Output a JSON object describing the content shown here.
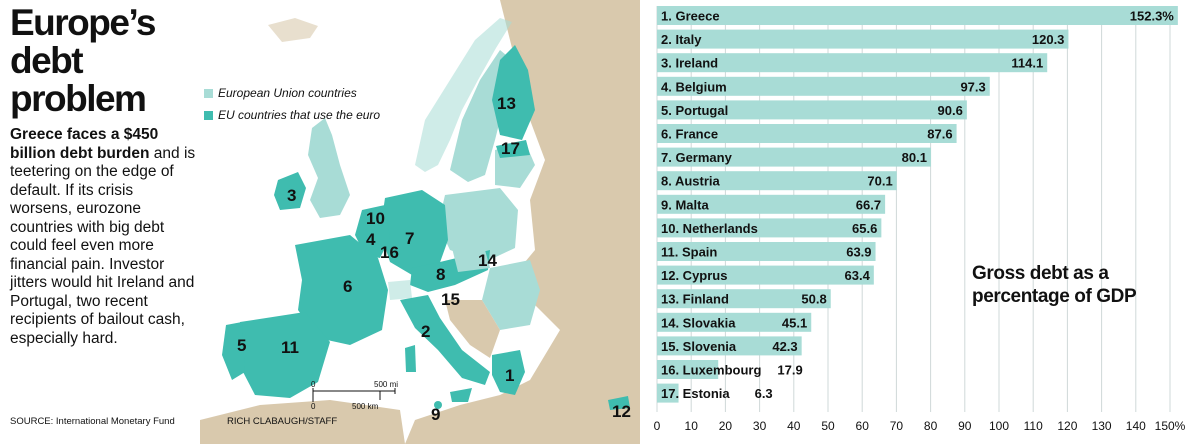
{
  "title": "Europe’s debt problem",
  "blurb": {
    "bold": "Greece faces a $450 billion debt burden",
    "text": " and is teetering on the edge of default. If its crisis worsens, eurozone countries with big debt could feel even more financial pain. Investor jitters would hit Ireland and Portugal, two recent recipients of bailout cash, especially hard."
  },
  "source": "SOURCE: International Monetary Fund",
  "credit": "RICH CLABAUGH/STAFF",
  "map": {
    "legend": [
      {
        "label": "European Union countries",
        "color": "#a8dcd6"
      },
      {
        "label": "EU countries that use the euro",
        "color": "#3fbcaf"
      }
    ],
    "scale": {
      "miles": "500 mi",
      "km": "500 km",
      "zero": "0"
    },
    "numbers": [
      "1",
      "2",
      "3",
      "4",
      "5",
      "6",
      "7",
      "8",
      "9",
      "10",
      "11",
      "12",
      "13",
      "14",
      "15",
      "16",
      "17"
    ]
  },
  "colors": {
    "bar": "#a8dcd6",
    "euro": "#3fbcaf",
    "eu": "#a8dcd6",
    "nonEU": "#d9c9ad",
    "grid": "#cfd8d8"
  },
  "chart_title": "Gross debt as a percentage of GDP",
  "chart_data": {
    "type": "bar",
    "orientation": "horizontal",
    "xlim": [
      0,
      150
    ],
    "tick_labels": [
      "0",
      "10",
      "20",
      "30",
      "40",
      "50",
      "60",
      "70",
      "80",
      "90",
      "100",
      "110",
      "120",
      "130",
      "140",
      "150%"
    ],
    "categories": [
      "1. Greece",
      "2. Italy",
      "3. Ireland",
      "4. Belgium",
      "5. Portugal",
      "6. France",
      "7. Germany",
      "8. Austria",
      "9. Malta",
      "10. Netherlands",
      "11. Spain",
      "12. Cyprus",
      "13. Finland",
      "14. Slovakia",
      "15. Slovenia",
      "16. Luxembourg",
      "17. Estonia"
    ],
    "values": [
      152.3,
      120.3,
      114.1,
      97.3,
      90.6,
      87.6,
      80.1,
      70.1,
      66.7,
      65.6,
      63.9,
      63.4,
      50.8,
      45.1,
      42.3,
      17.9,
      6.3
    ],
    "value_labels": [
      "152.3%",
      "120.3",
      "114.1",
      "97.3",
      "90.6",
      "87.6",
      "80.1",
      "70.1",
      "66.7",
      "65.6",
      "63.9",
      "63.4",
      "50.8",
      "45.1",
      "42.3",
      "17.9",
      "6.3"
    ]
  }
}
